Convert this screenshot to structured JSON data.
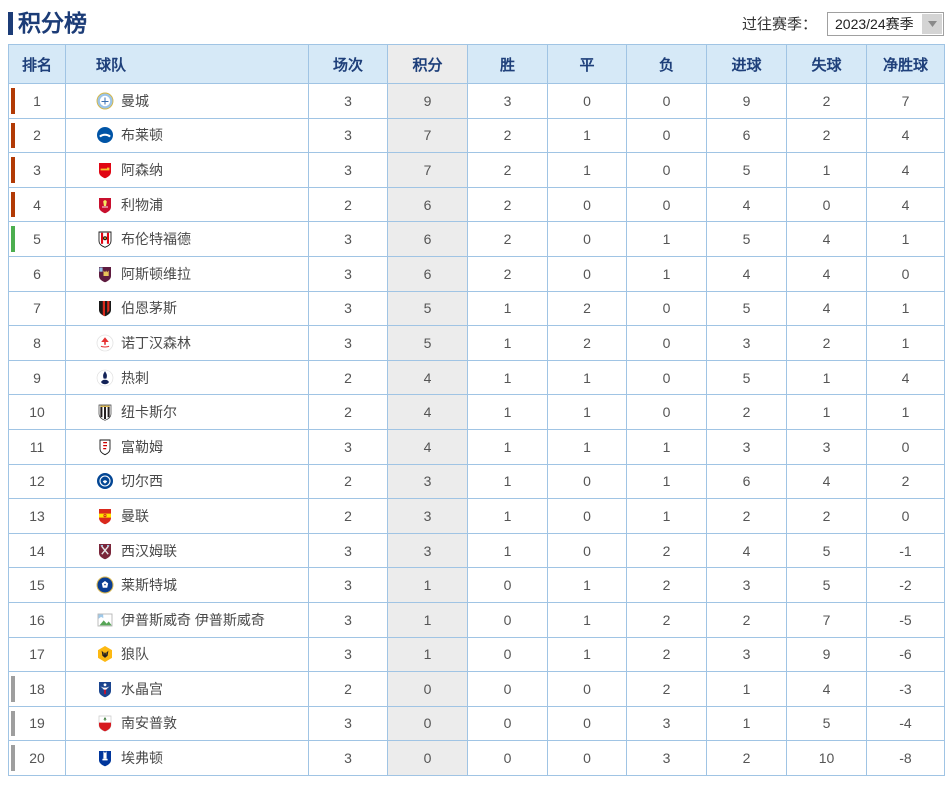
{
  "page": {
    "title": "积分榜"
  },
  "season_selector": {
    "label": "过往赛季：",
    "selected": "2023/24赛季"
  },
  "colors": {
    "accent": "#1c3c77",
    "header_bg": "#d6e9f7",
    "grid_border": "#a0c4e4",
    "points_col_bg": "#ececec",
    "zone_cl": "#b23a05",
    "zone_europa": "#4cae4f",
    "zone_relegation": "#9e9e9e"
  },
  "table": {
    "headers": [
      "排名",
      "球队",
      "场次",
      "积分",
      "胜",
      "平",
      "负",
      "进球",
      "失球",
      "净胜球"
    ],
    "rows": [
      {
        "rank": 1,
        "team": "曼城",
        "crest": "man-city",
        "zone": "cl",
        "played": 3,
        "points": 9,
        "win": 3,
        "draw": 0,
        "loss": 0,
        "gf": 9,
        "ga": 2,
        "gd": 7
      },
      {
        "rank": 2,
        "team": "布莱顿",
        "crest": "brighton",
        "zone": "cl",
        "played": 3,
        "points": 7,
        "win": 2,
        "draw": 1,
        "loss": 0,
        "gf": 6,
        "ga": 2,
        "gd": 4
      },
      {
        "rank": 3,
        "team": "阿森纳",
        "crest": "arsenal",
        "zone": "cl",
        "played": 3,
        "points": 7,
        "win": 2,
        "draw": 1,
        "loss": 0,
        "gf": 5,
        "ga": 1,
        "gd": 4
      },
      {
        "rank": 4,
        "team": "利物浦",
        "crest": "liverpool",
        "zone": "cl",
        "played": 2,
        "points": 6,
        "win": 2,
        "draw": 0,
        "loss": 0,
        "gf": 4,
        "ga": 0,
        "gd": 4
      },
      {
        "rank": 5,
        "team": "布伦特福德",
        "crest": "brentford",
        "zone": "europa",
        "played": 3,
        "points": 6,
        "win": 2,
        "draw": 0,
        "loss": 1,
        "gf": 5,
        "ga": 4,
        "gd": 1
      },
      {
        "rank": 6,
        "team": "阿斯顿维拉",
        "crest": "aston-villa",
        "zone": null,
        "played": 3,
        "points": 6,
        "win": 2,
        "draw": 0,
        "loss": 1,
        "gf": 4,
        "ga": 4,
        "gd": 0
      },
      {
        "rank": 7,
        "team": "伯恩茅斯",
        "crest": "bournemouth",
        "zone": null,
        "played": 3,
        "points": 5,
        "win": 1,
        "draw": 2,
        "loss": 0,
        "gf": 5,
        "ga": 4,
        "gd": 1
      },
      {
        "rank": 8,
        "team": "诺丁汉森林",
        "crest": "nottm-forest",
        "zone": null,
        "played": 3,
        "points": 5,
        "win": 1,
        "draw": 2,
        "loss": 0,
        "gf": 3,
        "ga": 2,
        "gd": 1
      },
      {
        "rank": 9,
        "team": "热刺",
        "crest": "tottenham",
        "zone": null,
        "played": 2,
        "points": 4,
        "win": 1,
        "draw": 1,
        "loss": 0,
        "gf": 5,
        "ga": 1,
        "gd": 4
      },
      {
        "rank": 10,
        "team": "纽卡斯尔",
        "crest": "newcastle",
        "zone": null,
        "played": 2,
        "points": 4,
        "win": 1,
        "draw": 1,
        "loss": 0,
        "gf": 2,
        "ga": 1,
        "gd": 1
      },
      {
        "rank": 11,
        "team": "富勒姆",
        "crest": "fulham",
        "zone": null,
        "played": 3,
        "points": 4,
        "win": 1,
        "draw": 1,
        "loss": 1,
        "gf": 3,
        "ga": 3,
        "gd": 0
      },
      {
        "rank": 12,
        "team": "切尔西",
        "crest": "chelsea",
        "zone": null,
        "played": 2,
        "points": 3,
        "win": 1,
        "draw": 0,
        "loss": 1,
        "gf": 6,
        "ga": 4,
        "gd": 2
      },
      {
        "rank": 13,
        "team": "曼联",
        "crest": "man-united",
        "zone": null,
        "played": 2,
        "points": 3,
        "win": 1,
        "draw": 0,
        "loss": 1,
        "gf": 2,
        "ga": 2,
        "gd": 0
      },
      {
        "rank": 14,
        "team": "西汉姆联",
        "crest": "west-ham",
        "zone": null,
        "played": 3,
        "points": 3,
        "win": 1,
        "draw": 0,
        "loss": 2,
        "gf": 4,
        "ga": 5,
        "gd": -1
      },
      {
        "rank": 15,
        "team": "莱斯特城",
        "crest": "leicester",
        "zone": null,
        "played": 3,
        "points": 1,
        "win": 0,
        "draw": 1,
        "loss": 2,
        "gf": 3,
        "ga": 5,
        "gd": -2
      },
      {
        "rank": 16,
        "team": "伊普斯威奇 伊普斯威奇",
        "crest": "broken-image",
        "zone": null,
        "played": 3,
        "points": 1,
        "win": 0,
        "draw": 1,
        "loss": 2,
        "gf": 2,
        "ga": 7,
        "gd": -5
      },
      {
        "rank": 17,
        "team": "狼队",
        "crest": "wolves",
        "zone": null,
        "played": 3,
        "points": 1,
        "win": 0,
        "draw": 1,
        "loss": 2,
        "gf": 3,
        "ga": 9,
        "gd": -6
      },
      {
        "rank": 18,
        "team": "水晶宫",
        "crest": "crystal-palace",
        "zone": "relegation",
        "played": 2,
        "points": 0,
        "win": 0,
        "draw": 0,
        "loss": 2,
        "gf": 1,
        "ga": 4,
        "gd": -3
      },
      {
        "rank": 19,
        "team": "南安普敦",
        "crest": "southampton",
        "zone": "relegation",
        "played": 3,
        "points": 0,
        "win": 0,
        "draw": 0,
        "loss": 3,
        "gf": 1,
        "ga": 5,
        "gd": -4
      },
      {
        "rank": 20,
        "team": "埃弗顿",
        "crest": "everton",
        "zone": "relegation",
        "played": 3,
        "points": 0,
        "win": 0,
        "draw": 0,
        "loss": 3,
        "gf": 2,
        "ga": 10,
        "gd": -8
      }
    ]
  }
}
